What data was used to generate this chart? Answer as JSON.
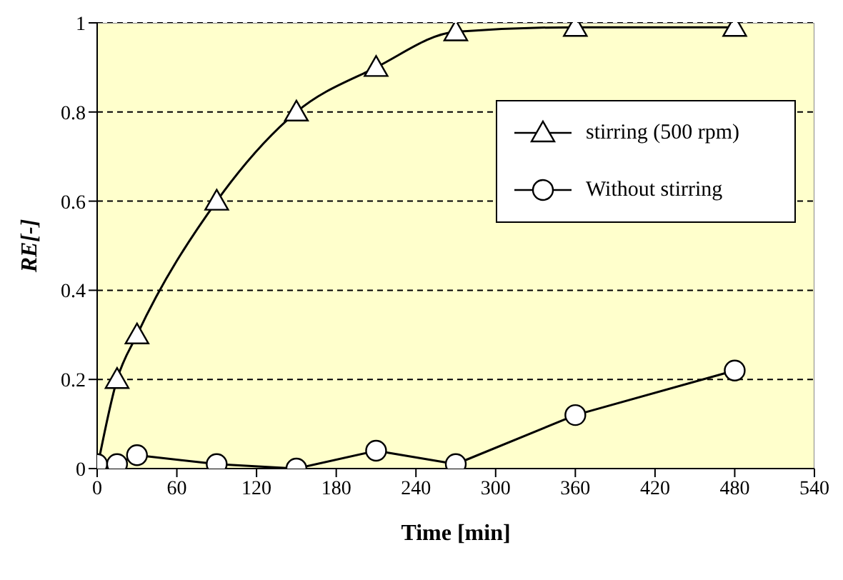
{
  "chart_data": {
    "type": "line",
    "xlabel": "Time [min]",
    "ylabel": "RE[-]",
    "xlim": [
      0,
      540
    ],
    "xticks": [
      0,
      60,
      120,
      180,
      240,
      300,
      360,
      420,
      480,
      540
    ],
    "ylim": [
      0,
      1
    ],
    "yticks": [
      0,
      0.2,
      0.4,
      0.6,
      0.8,
      1
    ],
    "grid": "y",
    "legend": "top right",
    "line_style": "solid",
    "series": [
      {
        "name": "stirring (500 rpm)",
        "color": "#000000",
        "marker": "triangle",
        "x": [
          0,
          15,
          30,
          90,
          150,
          210,
          270,
          360,
          480
        ],
        "values": [
          0,
          0.2,
          0.3,
          0.6,
          0.8,
          0.9,
          0.98,
          0.99,
          0.99
        ]
      },
      {
        "name": "Without stirring",
        "color": "#000000",
        "marker": "circle",
        "x": [
          0,
          15,
          30,
          90,
          150,
          210,
          270,
          360,
          480
        ],
        "values": [
          0.01,
          0.01,
          0.03,
          0.01,
          0,
          0.04,
          0.01,
          0.12,
          0.22
        ]
      }
    ]
  }
}
